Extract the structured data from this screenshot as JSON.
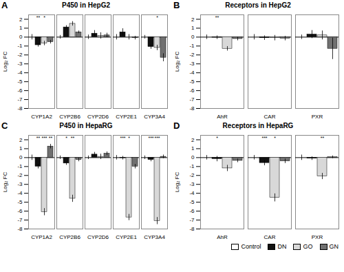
{
  "chart_data": [
    {
      "type": "bar",
      "label": "A",
      "title": "P450 in HepG2",
      "ylabel": "Log₂ FC",
      "categories": [
        "CYP1A2",
        "CYP2B6",
        "CYP2D6",
        "CYP2E1",
        "CYP3A4"
      ],
      "ylim": [
        -8,
        2.5
      ],
      "yticks": [
        -8,
        -7,
        -6,
        -5,
        -4,
        -3,
        -2,
        -1,
        0,
        1,
        2
      ],
      "series": [
        {
          "name": "Control",
          "color": "#ffffff",
          "values": [
            0.0,
            0.0,
            0.0,
            0.0,
            0.0
          ],
          "errors": [
            0.3,
            0.2,
            0.25,
            0.3,
            0.2
          ]
        },
        {
          "name": "DN",
          "color": "#111111",
          "values": [
            -0.9,
            1.1,
            0.4,
            0.55,
            -1.1
          ],
          "errors": [
            0.2,
            0.2,
            0.35,
            0.4,
            0.25
          ],
          "annotations": [
            "**",
            null,
            null,
            null,
            null
          ]
        },
        {
          "name": "GO",
          "color": "#d8d8d8",
          "values": [
            -0.7,
            1.5,
            0.15,
            0.0,
            -1.2
          ],
          "errors": [
            0.25,
            0.25,
            0.35,
            0.3,
            0.3
          ],
          "annotations": [
            "*",
            null,
            null,
            null,
            "*"
          ]
        },
        {
          "name": "GN",
          "color": "#707070",
          "values": [
            -0.55,
            0.55,
            0.2,
            -0.1,
            -2.3
          ],
          "errors": [
            0.2,
            0.15,
            0.25,
            0.2,
            0.45
          ]
        }
      ]
    },
    {
      "type": "bar",
      "label": "B",
      "title": "Receptors in HepG2",
      "ylabel": "Log₂ FC",
      "categories": [
        "AhR",
        "CAR",
        "PXR"
      ],
      "ylim": [
        -8,
        2.5
      ],
      "yticks": [
        -8,
        -7,
        -6,
        -5,
        -4,
        -3,
        -2,
        -1,
        0,
        1,
        2
      ],
      "series": [
        {
          "name": "Control",
          "color": "#ffffff",
          "values": [
            0.0,
            0.0,
            0.0
          ],
          "errors": [
            0.25,
            0.3,
            0.25
          ]
        },
        {
          "name": "DN",
          "color": "#111111",
          "values": [
            -0.05,
            -0.1,
            0.3
          ],
          "errors": [
            0.2,
            0.25,
            0.45
          ],
          "annotations": [
            "**",
            null,
            null
          ]
        },
        {
          "name": "GO",
          "color": "#d8d8d8",
          "values": [
            -1.3,
            -0.1,
            0.2
          ],
          "errors": [
            0.25,
            0.3,
            0.5
          ]
        },
        {
          "name": "GN",
          "color": "#707070",
          "values": [
            -0.2,
            -0.15,
            -1.3
          ],
          "errors": [
            0.2,
            0.25,
            1.2
          ]
        }
      ]
    },
    {
      "type": "bar",
      "label": "C",
      "title": "P450 in HepaRG",
      "ylabel": "Log₂ FC",
      "categories": [
        "CYP1A2",
        "CYP2B6",
        "CYP2D6",
        "CYP2E1",
        "CYP3A4"
      ],
      "ylim": [
        -8,
        2.5
      ],
      "yticks": [
        -8,
        -7,
        -6,
        -5,
        -4,
        -3,
        -2,
        -1,
        0,
        1,
        2
      ],
      "legend": "lower right",
      "series": [
        {
          "name": "Control",
          "color": "#ffffff",
          "values": [
            0.0,
            0.0,
            0.0,
            0.0,
            0.0
          ],
          "errors": [
            0.3,
            0.2,
            0.2,
            0.25,
            0.2
          ]
        },
        {
          "name": "DN",
          "color": "#111111",
          "values": [
            -1.0,
            -0.65,
            0.35,
            -0.05,
            -0.25
          ],
          "errors": [
            0.25,
            0.2,
            0.25,
            0.2,
            0.2
          ],
          "annotations": [
            "**",
            "*",
            null,
            "***",
            "***"
          ]
        },
        {
          "name": "GO",
          "color": "#d8d8d8",
          "values": [
            -6.1,
            -4.6,
            0.1,
            -6.7,
            -7.1
          ],
          "errors": [
            0.4,
            0.4,
            0.3,
            0.35,
            0.4
          ],
          "annotations": [
            "***",
            "**",
            null,
            "*",
            "***"
          ]
        },
        {
          "name": "GN",
          "color": "#707070",
          "values": [
            1.25,
            -0.25,
            0.45,
            -1.0,
            0.1
          ],
          "errors": [
            0.25,
            0.2,
            0.2,
            0.25,
            0.2
          ],
          "annotations": [
            "**",
            null,
            null,
            null,
            null
          ]
        }
      ]
    },
    {
      "type": "bar",
      "label": "D",
      "title": "Receptors in HepaRG",
      "ylabel": "Log₂ FC",
      "categories": [
        "AhR",
        "CAR",
        "PXR"
      ],
      "ylim": [
        -8,
        2.5
      ],
      "yticks": [
        -8,
        -7,
        -6,
        -5,
        -4,
        -3,
        -2,
        -1,
        0,
        1,
        2
      ],
      "series": [
        {
          "name": "Control",
          "color": "#ffffff",
          "values": [
            0.0,
            0.0,
            0.0
          ],
          "errors": [
            0.25,
            0.25,
            0.3
          ]
        },
        {
          "name": "DN",
          "color": "#111111",
          "values": [
            -0.15,
            -0.6,
            -0.1
          ],
          "errors": [
            0.3,
            0.3,
            0.2
          ],
          "annotations": [
            "*",
            "***",
            null
          ]
        },
        {
          "name": "GO",
          "color": "#d8d8d8",
          "values": [
            -1.2,
            -4.5,
            -2.1
          ],
          "errors": [
            0.35,
            0.45,
            0.35
          ],
          "annotations": [
            null,
            "*",
            "**"
          ]
        },
        {
          "name": "GN",
          "color": "#707070",
          "values": [
            -0.35,
            -0.4,
            0.05
          ],
          "errors": [
            0.2,
            0.25,
            0.15
          ]
        }
      ]
    }
  ]
}
